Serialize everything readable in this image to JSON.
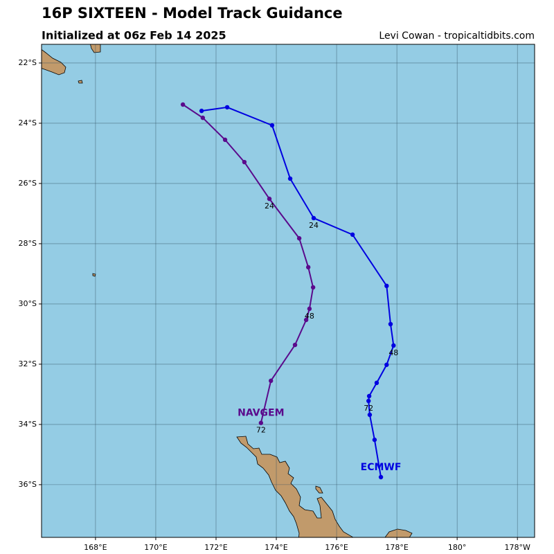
{
  "header": {
    "title": "16P SIXTEEN - Model Track Guidance",
    "subtitle": "Initialized at 06z Feb 14 2025",
    "credit": "Levi Cowan - tropicaltidbits.com"
  },
  "map": {
    "lon_range": [
      166.21,
      182.57
    ],
    "lat_range": [
      -37.75,
      -21.38
    ],
    "lon_ticks": [
      {
        "value": 168,
        "label": "168°E"
      },
      {
        "value": 170,
        "label": "170°E"
      },
      {
        "value": 172,
        "label": "172°E"
      },
      {
        "value": 174,
        "label": "174°E"
      },
      {
        "value": 176,
        "label": "176°E"
      },
      {
        "value": 178,
        "label": "178°E"
      },
      {
        "value": 180,
        "label": "180°"
      },
      {
        "value": 182,
        "label": "178°W"
      }
    ],
    "lat_ticks": [
      {
        "value": -22,
        "label": "22°S"
      },
      {
        "value": -24,
        "label": "24°S"
      },
      {
        "value": -26,
        "label": "26°S"
      },
      {
        "value": -28,
        "label": "28°S"
      },
      {
        "value": -30,
        "label": "30°S"
      },
      {
        "value": -32,
        "label": "32°S"
      },
      {
        "value": -34,
        "label": "34°S"
      },
      {
        "value": -36,
        "label": "36°S"
      }
    ],
    "ocean_color": "#94cce4",
    "land_color": "#c19a6b"
  },
  "tracks": [
    {
      "name": "ECMWF",
      "color": "#0000e0",
      "points": [
        {
          "lon": 171.52,
          "lat": -23.59
        },
        {
          "lon": 172.37,
          "lat": -23.47
        },
        {
          "lon": 173.86,
          "lat": -24.07
        },
        {
          "lon": 174.46,
          "lat": -25.84
        },
        {
          "lon": 175.24,
          "lat": -27.15,
          "label": "24"
        },
        {
          "lon": 176.53,
          "lat": -27.7
        },
        {
          "lon": 177.66,
          "lat": -29.4
        },
        {
          "lon": 177.79,
          "lat": -30.67
        },
        {
          "lon": 177.89,
          "lat": -31.38,
          "label": "48"
        },
        {
          "lon": 177.66,
          "lat": -32.02
        },
        {
          "lon": 177.33,
          "lat": -32.62
        },
        {
          "lon": 177.08,
          "lat": -33.06
        },
        {
          "lon": 177.06,
          "lat": -33.22,
          "label": "72"
        },
        {
          "lon": 177.1,
          "lat": -33.68
        },
        {
          "lon": 177.26,
          "lat": -34.51
        },
        {
          "lon": 177.47,
          "lat": -35.75
        }
      ]
    },
    {
      "name": "NAVGEM",
      "color": "#5a0a8c",
      "points": [
        {
          "lon": 170.9,
          "lat": -23.38
        },
        {
          "lon": 171.56,
          "lat": -23.82
        },
        {
          "lon": 172.3,
          "lat": -24.55
        },
        {
          "lon": 172.94,
          "lat": -25.29
        },
        {
          "lon": 173.77,
          "lat": -26.51,
          "label": "24"
        },
        {
          "lon": 174.76,
          "lat": -27.82
        },
        {
          "lon": 175.06,
          "lat": -28.78
        },
        {
          "lon": 175.22,
          "lat": -29.45
        },
        {
          "lon": 175.1,
          "lat": -30.16,
          "label": "48"
        },
        {
          "lon": 174.99,
          "lat": -30.53
        },
        {
          "lon": 174.62,
          "lat": -31.36
        },
        {
          "lon": 173.82,
          "lat": -32.55
        },
        {
          "lon": 173.49,
          "lat": -33.95,
          "label": "72"
        }
      ]
    }
  ]
}
